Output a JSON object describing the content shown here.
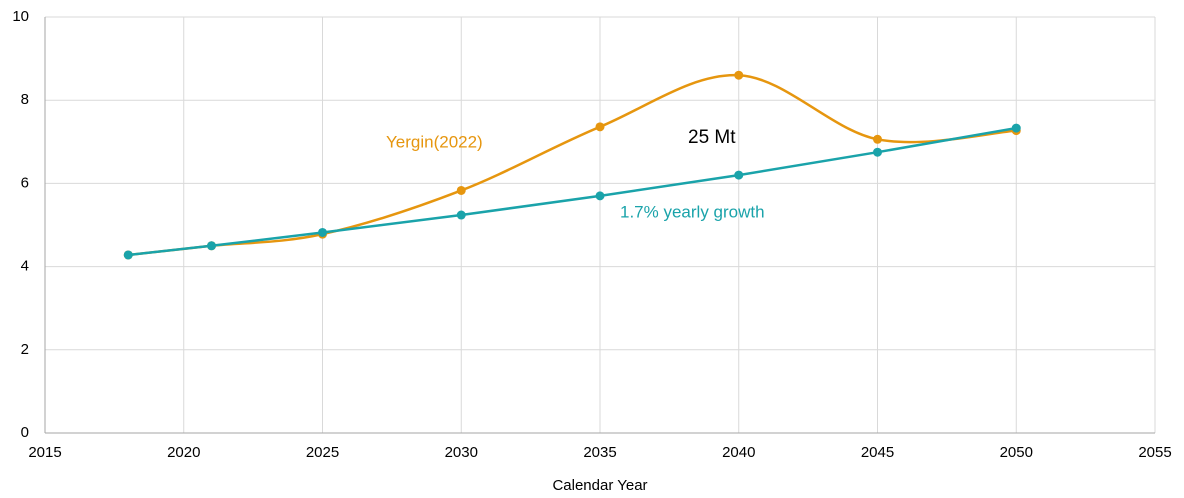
{
  "chart_data": {
    "type": "line",
    "xlabel": "Calendar Year",
    "annotations": [
      "25 Mt"
    ],
    "xlim": [
      2015,
      2055
    ],
    "xticks": [
      2015,
      2020,
      2025,
      2030,
      2035,
      2040,
      2045,
      2050,
      2055
    ],
    "ylim": [
      0,
      10
    ],
    "yticks": [
      0,
      2,
      4,
      6,
      8,
      10
    ],
    "grid": true,
    "series": [
      {
        "name": "Yergin(2022)",
        "color": "#e6960f",
        "smooth": true,
        "x": [
          2018,
          2021,
          2025,
          2030,
          2035,
          2040,
          2045,
          2050
        ],
        "values": [
          4.28,
          4.5,
          4.78,
          5.83,
          7.36,
          8.6,
          7.06,
          7.27
        ]
      },
      {
        "name": "1.7% yearly growth",
        "color": "#1aa3aa",
        "smooth": false,
        "x": [
          2018,
          2021,
          2025,
          2030,
          2035,
          2040,
          2045,
          2050
        ],
        "values": [
          4.28,
          4.5,
          4.82,
          5.24,
          5.7,
          6.2,
          6.75,
          7.33
        ]
      }
    ]
  }
}
